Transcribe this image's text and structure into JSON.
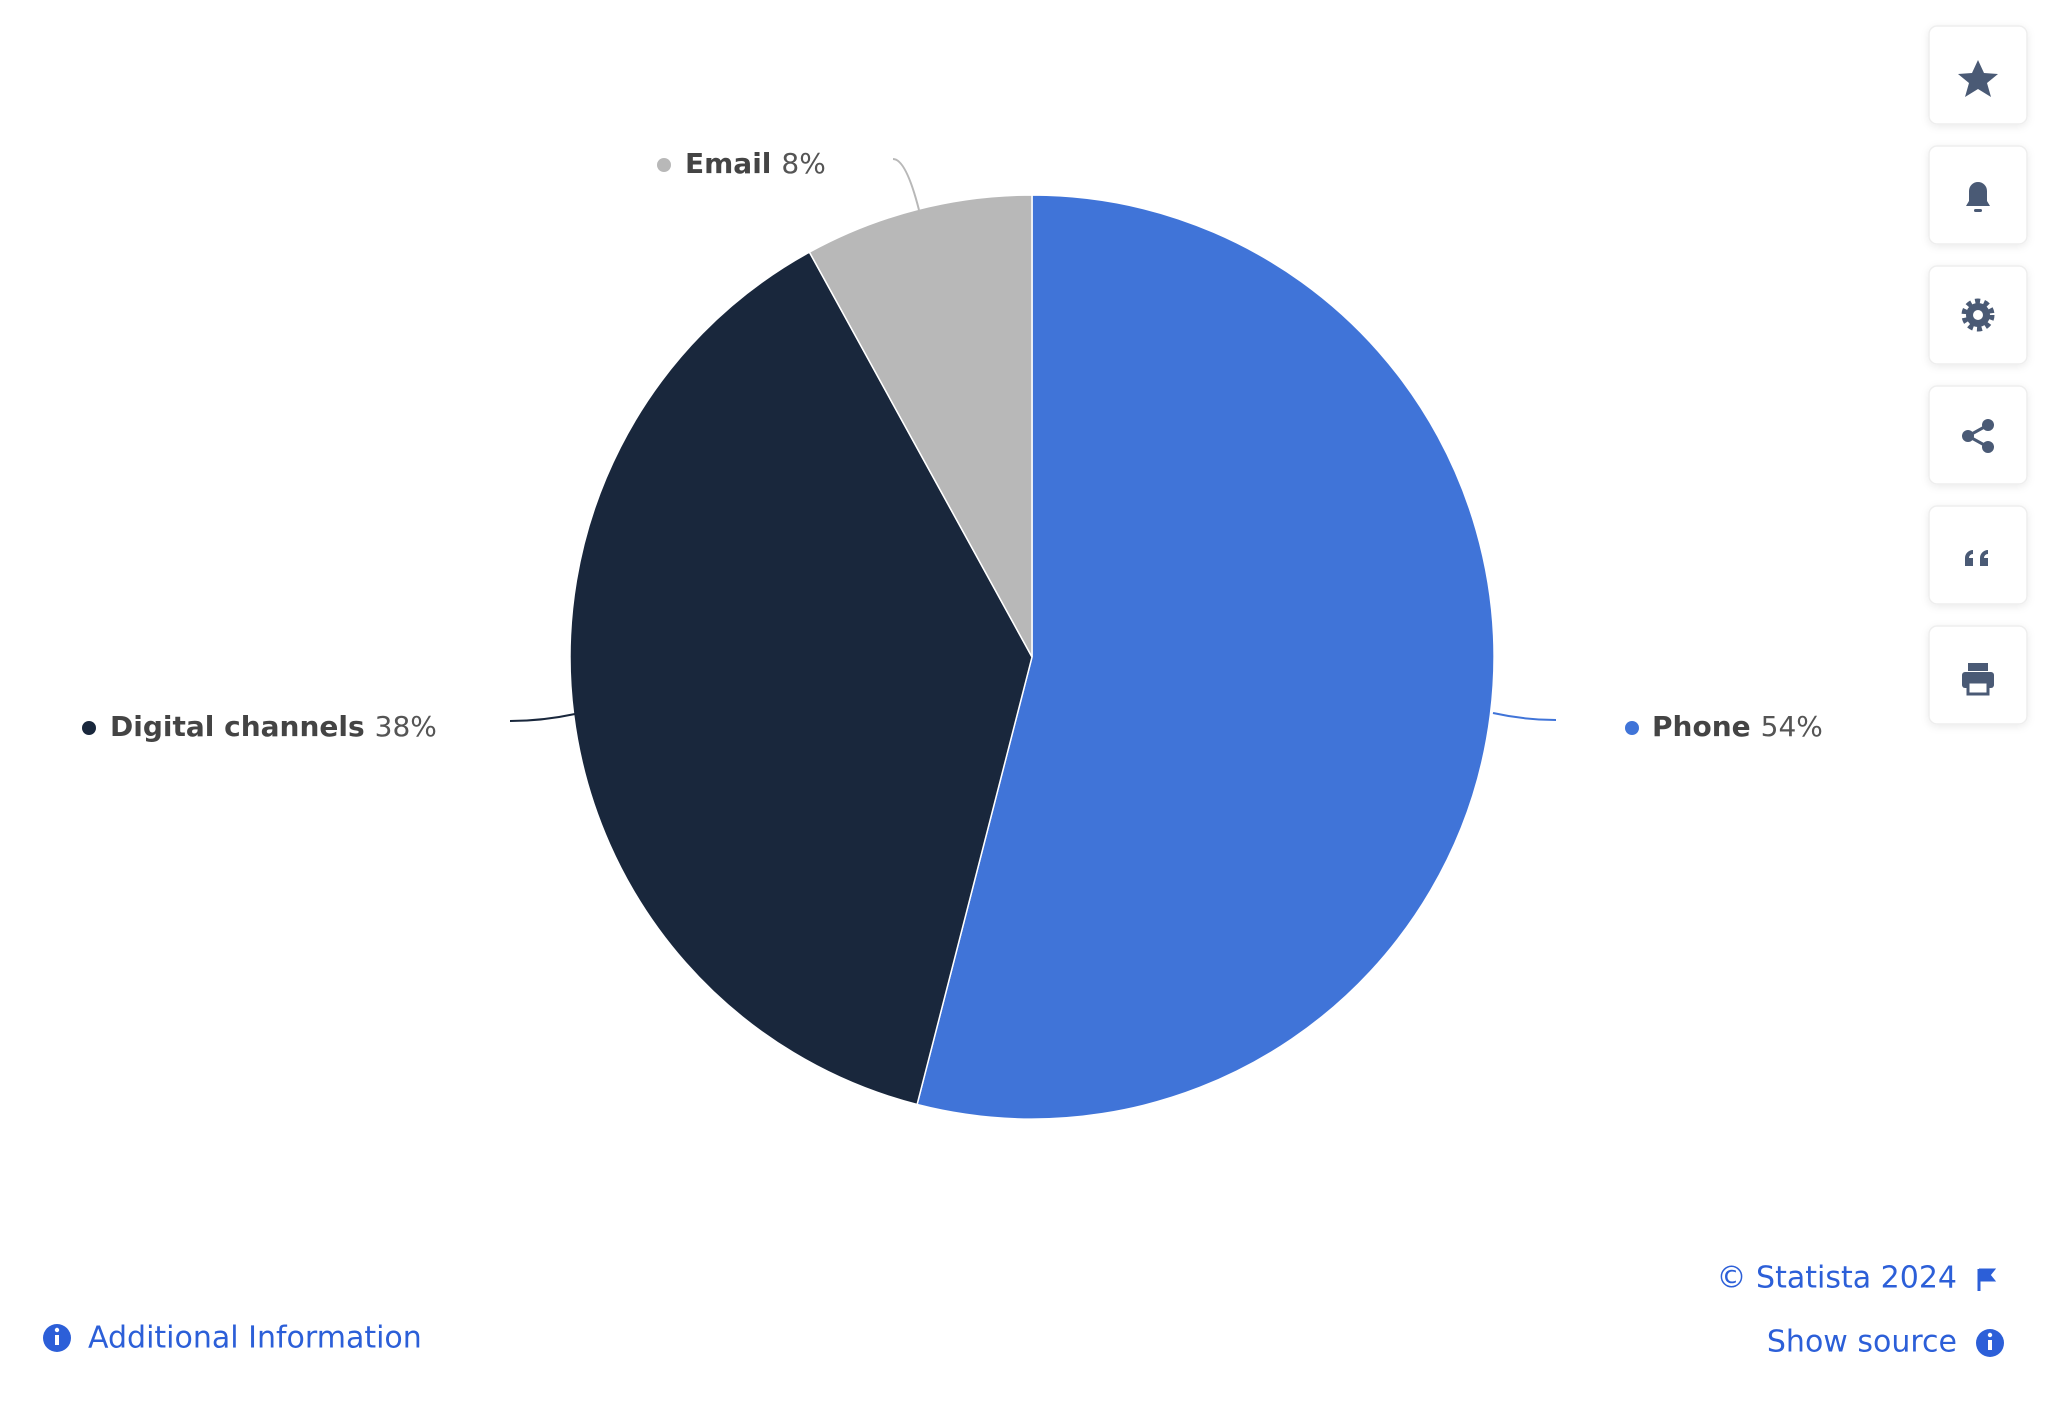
{
  "chart_data": {
    "type": "pie",
    "categories": [
      "Phone",
      "Digital channels",
      "Email"
    ],
    "values": [
      54,
      38,
      8
    ],
    "value_labels": [
      "54%",
      "38%",
      "8%"
    ],
    "colors": [
      "#4074d8",
      "#19273c",
      "#b8b8b8"
    ]
  },
  "footer": {
    "copyright": "© Statista 2024",
    "show_source": "Show source",
    "additional_information": "Additional Information"
  }
}
